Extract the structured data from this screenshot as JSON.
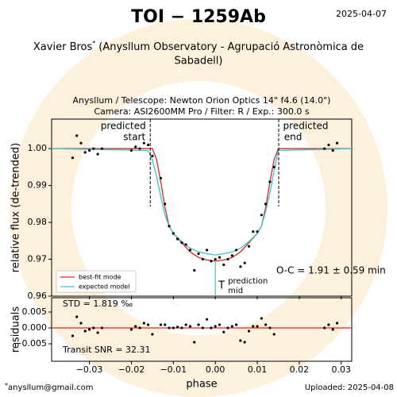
{
  "header": {
    "title": "TOI − 1259Ab",
    "date": "2025-04-07",
    "observer": "Xavier Bros",
    "marker": "*",
    "affiliation": [
      "(Anysllum Observatory - Agrupació Astronòmica de",
      "Sabadell)"
    ],
    "setup": [
      "Anysllum / Telescope: Newton Orion Optics 14\" f4.6 (14.0\")",
      "Camera: ASI2600MM Pro / Filter: R / Exp.: 300.0 s"
    ]
  },
  "footer": {
    "marker": "*",
    "email": "anysllum@gmail.com",
    "uploaded": "Uploaded: 2025-04-08"
  },
  "chart_data": [
    {
      "type": "scatter",
      "ylabel": "relative flux (de-trended)",
      "color": "#000000",
      "xlim": [
        -0.039,
        0.0325
      ],
      "ylim": [
        0.96,
        1.008
      ],
      "yticks": [
        0.96,
        0.97,
        0.98,
        0.99,
        {
          "value": 1,
          "label": "1.00"
        }
      ],
      "x": [
        -0.034,
        -0.033,
        -0.032,
        -0.031,
        -0.03,
        -0.029,
        -0.028,
        -0.027,
        -0.02,
        -0.019,
        -0.018,
        -0.017,
        -0.016,
        -0.015,
        -0.013,
        -0.012,
        -0.011,
        -0.01,
        -0.009,
        -0.008,
        -0.007,
        -0.006,
        -0.005,
        -0.004,
        -0.003,
        -0.002,
        -0.001,
        0.0,
        0.001,
        0.002,
        0.003,
        0.004,
        0.005,
        0.006,
        0.007,
        0.008,
        0.009,
        0.01,
        0.011,
        0.012,
        0.013,
        0.014,
        0.026,
        0.027,
        0.028,
        0.029
      ],
      "values": [
        0.9975,
        1.0035,
        1.0015,
        0.999,
        0.9995,
        1.0,
        0.9985,
        1.0,
        0.9995,
        1.0005,
        1.0,
        1.0015,
        1.001,
        0.998,
        0.992,
        0.985,
        0.979,
        0.977,
        0.9755,
        0.9745,
        0.974,
        0.9725,
        0.967,
        0.9715,
        0.97,
        0.9725,
        0.9695,
        0.97,
        0.9705,
        0.9685,
        0.97,
        0.971,
        0.9725,
        0.968,
        0.969,
        0.9735,
        0.9775,
        0.9775,
        0.982,
        0.985,
        0.991,
        0.995,
        1.0,
        1.001,
        0.9995,
        1.0015
      ],
      "models": [
        {
          "name": "best-fit mode",
          "color": "#d62728",
          "x": [
            -0.039,
            -0.016,
            -0.015,
            -0.014,
            -0.013,
            -0.012,
            -0.011,
            -0.01,
            -0.008,
            -0.006,
            -0.004,
            -0.002,
            0,
            0.002,
            0.004,
            0.006,
            0.008,
            0.01,
            0.011,
            0.012,
            0.013,
            0.014,
            0.015,
            0.0325
          ],
          "values": [
            1,
            1,
            1,
            0.997,
            0.991,
            0.984,
            0.979,
            0.977,
            0.9745,
            0.972,
            0.9705,
            0.9698,
            0.9695,
            0.9698,
            0.9705,
            0.972,
            0.9745,
            0.977,
            0.979,
            0.984,
            0.991,
            0.997,
            1,
            1
          ]
        },
        {
          "name": "expected model",
          "color": "#3cc7c7",
          "x": [
            -0.039,
            -0.016,
            -0.015,
            -0.014,
            -0.013,
            -0.012,
            -0.011,
            -0.01,
            -0.008,
            -0.006,
            -0.004,
            -0.002,
            0,
            0.002,
            0.004,
            0.006,
            0.008,
            0.01,
            0.011,
            0.012,
            0.013,
            0.014,
            0.015,
            0.0325
          ],
          "values": [
            1,
            0.9995,
            0.997,
            0.9925,
            0.987,
            0.982,
            0.979,
            0.977,
            0.9748,
            0.973,
            0.972,
            0.9715,
            0.9712,
            0.9715,
            0.972,
            0.973,
            0.9748,
            0.977,
            0.979,
            0.983,
            0.988,
            0.994,
            0.9995,
            1
          ]
        }
      ],
      "markers": [
        {
          "x": -0.0155,
          "label": [
            "predicted",
            "start"
          ]
        },
        {
          "x": 0.0151,
          "label": [
            "predicted",
            "end"
          ]
        }
      ],
      "mid": {
        "x": 0,
        "symbol": "T",
        "sup": "prediction",
        "sub": "mid"
      },
      "annotation": "O-C = 1.91 ± 0.59 min"
    },
    {
      "type": "scatter",
      "ylabel": "residuals",
      "xlabel": "phase",
      "color": "#000000",
      "baseline": 0,
      "baseline_color": "#d62728",
      "xlim": [
        -0.039,
        0.0325
      ],
      "ylim": [
        -0.0105,
        0.0095
      ],
      "yticks": [
        {
          "value": -0.005,
          "label": "−0.005"
        },
        {
          "value": 0,
          "label": "0.000"
        },
        0.005
      ],
      "xticks": [
        {
          "value": -0.03,
          "label": "−0.03"
        },
        {
          "value": -0.02,
          "label": "−0.02"
        },
        {
          "value": -0.01,
          "label": "−0.01"
        },
        {
          "value": 0,
          "label": "0.00"
        },
        0.01,
        0.02,
        0.03
      ],
      "values": [
        -0.0025,
        0.0035,
        0.0015,
        -0.001,
        -0.0005,
        0,
        -0.0015,
        0,
        -0.0005,
        0.0005,
        0,
        0.0015,
        0.001,
        -0.002,
        0.001,
        0.001,
        0,
        0,
        0.0003,
        0,
        0.001,
        0.0005,
        -0.0045,
        0.001,
        0,
        0.0027,
        0,
        0.0005,
        0.001,
        -0.0013,
        0,
        0.0005,
        0.001,
        -0.004,
        -0.0045,
        -0.001,
        0.0005,
        0.0005,
        0.003,
        0.001,
        0,
        -0.002,
        0,
        0.001,
        -0.0005,
        0.0015
      ],
      "stats": [
        "STD = 1.819 ‰",
        "Transit SNR = 32.31"
      ]
    }
  ]
}
